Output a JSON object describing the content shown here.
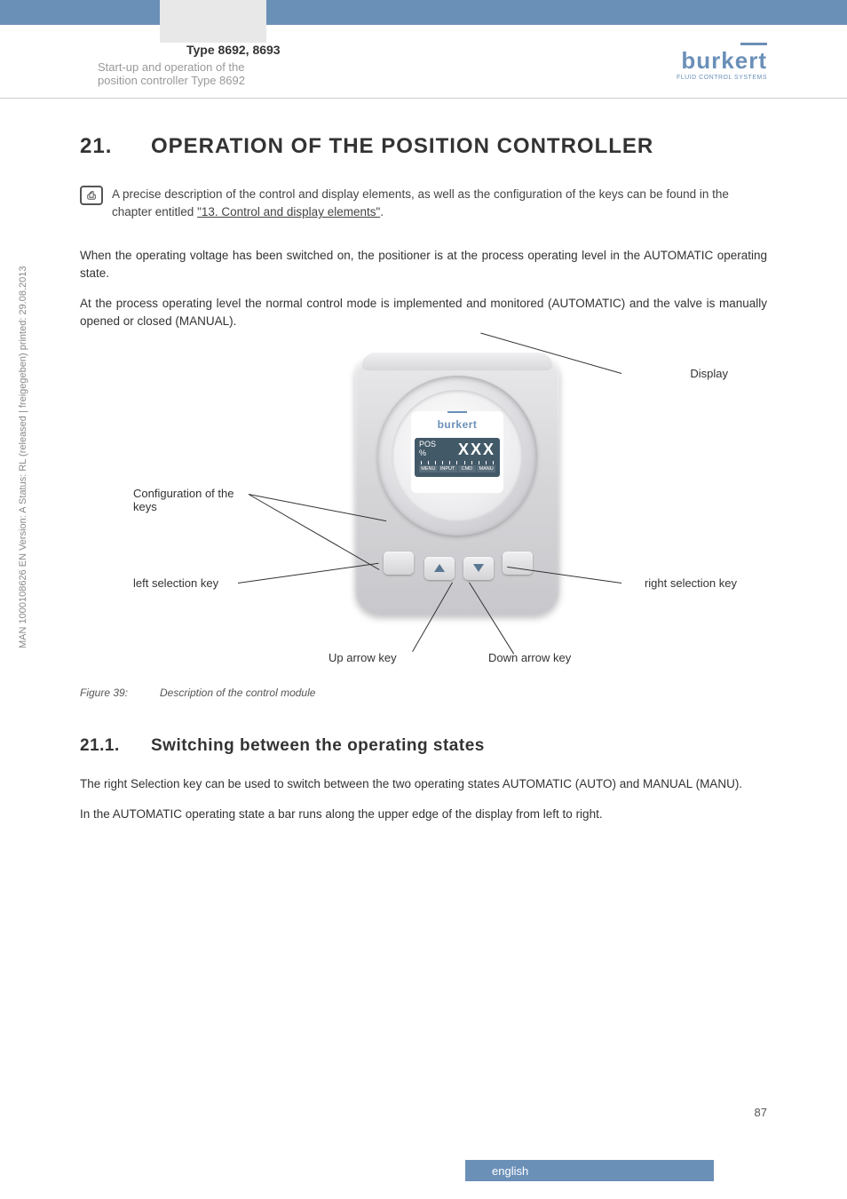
{
  "header": {
    "type_title": "Type 8692, 8693",
    "subtitle_line1": "Start-up and operation of the",
    "subtitle_line2": "position controller Type 8692",
    "logo_text": "burkert",
    "logo_sub": "FLUID CONTROL SYSTEMS"
  },
  "section": {
    "number": "21.",
    "title": "OPERATION OF THE POSITION CONTROLLER"
  },
  "info": {
    "text_prefix": "A precise description of the control and display elements, as well as the configuration of the keys can be found in the chapter entitled ",
    "link": "\"13. Control and display elements\"",
    "text_suffix": "."
  },
  "paragraphs": {
    "p1": "When the operating voltage has been switched on, the positioner is at the process operating level in the AUTOMATIC operating state.",
    "p2": "At the process operating level the normal control mode is implemented and monitored (AUTOMATIC) and the valve is manually opened or closed (MANUAL)."
  },
  "figure": {
    "labels": {
      "display": "Display",
      "config": "Configuration of the keys",
      "left_key": "left selection key",
      "right_key": "right selection key",
      "up_key": "Up arrow key",
      "down_key": "Down arrow key"
    },
    "lcd": {
      "pos_label": "POS",
      "pos_unit": "%",
      "value": "XXX",
      "menu_items": [
        "MENU",
        "INPUT",
        "CMD",
        "MANU"
      ]
    },
    "brand": "burkert",
    "caption_num": "Figure 39:",
    "caption_text": "Description of the control module"
  },
  "subsection": {
    "number": "21.1.",
    "title": "Switching between the operating states",
    "p1": "The right Selection key can be used to switch between the two operating states AUTOMATIC (AUTO) and MANUAL (MANU).",
    "p2": "In the AUTOMATIC operating state a bar runs along the upper edge of the display from left to right."
  },
  "sidebar": "MAN 1000108626 EN Version: A Status: RL (released | freigegeben) printed: 29.08.2013",
  "footer": {
    "page": "87",
    "lang": "english"
  },
  "colors": {
    "accent": "#6b90b8",
    "lcd_bg": "#425968"
  }
}
